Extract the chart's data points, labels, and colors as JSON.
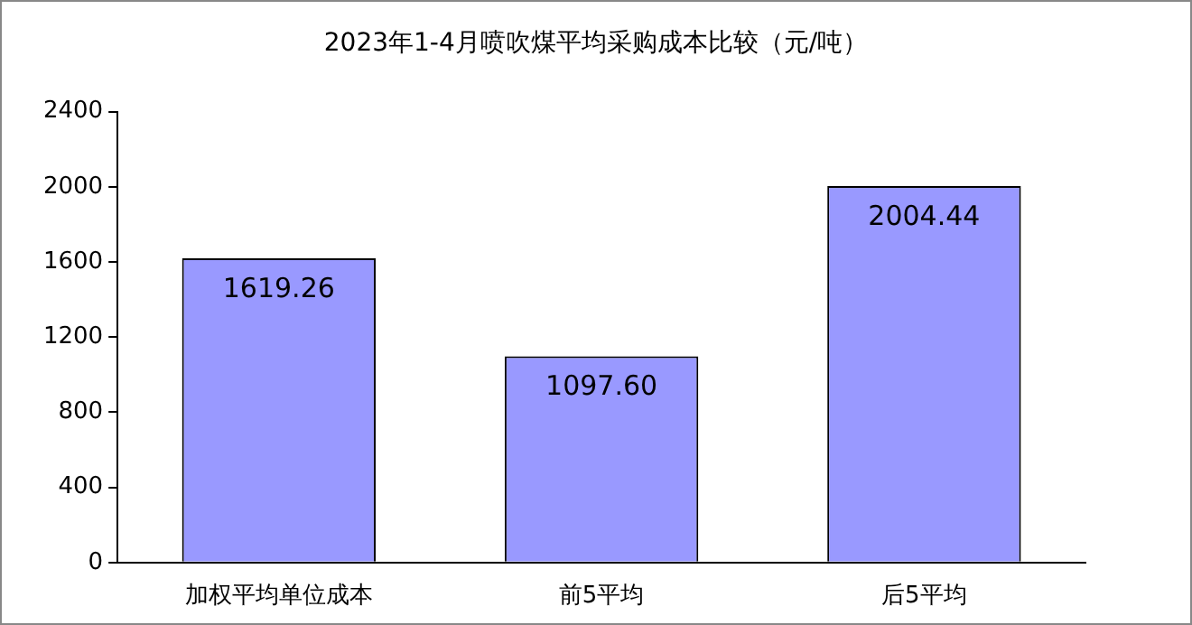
{
  "chart_data": {
    "type": "bar",
    "title": "2023年1-4月喷吹煤平均采购成本比较（元/吨）",
    "categories": [
      "加权平均单位成本",
      "前5平均",
      "后5平均"
    ],
    "values": [
      1619.26,
      1097.6,
      2004.44
    ],
    "value_labels": [
      "1619.26",
      "1097.60",
      "2004.44"
    ],
    "color": "#9999ff",
    "ylim": [
      0,
      2400
    ],
    "yticks": [
      0,
      400,
      800,
      1200,
      1600,
      2000,
      2400
    ],
    "grid": false,
    "legend": false
  }
}
